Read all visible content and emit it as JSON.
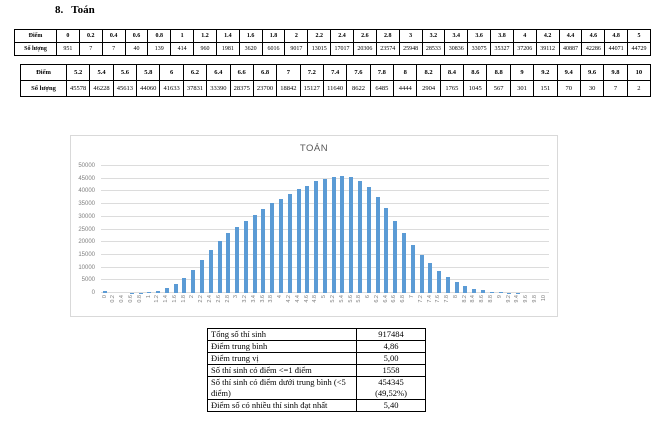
{
  "heading": {
    "number": "8.",
    "text": "Toán"
  },
  "table1": {
    "row_labels": [
      "Điểm",
      "Số lượng"
    ],
    "scores": [
      "0",
      "0.2",
      "0.4",
      "0.6",
      "0.8",
      "1",
      "1.2",
      "1.4",
      "1.6",
      "1.8",
      "2",
      "2.2",
      "2.4",
      "2.6",
      "2.8",
      "3",
      "3.2",
      "3.4",
      "3.6",
      "3.8",
      "4",
      "4.2",
      "4.4",
      "4.6",
      "4.8",
      "5"
    ],
    "counts": [
      "951",
      "7",
      "7",
      "40",
      "139",
      "414",
      "960",
      "1981",
      "3620",
      "6016",
      "9017",
      "13015",
      "17017",
      "20306",
      "23574",
      "25948",
      "28533",
      "30836",
      "33075",
      "35327",
      "37206",
      "39112",
      "40887",
      "42286",
      "44071",
      "44729"
    ]
  },
  "table2": {
    "row_labels": [
      "Điểm",
      "Số lượng"
    ],
    "scores": [
      "5.2",
      "5.4",
      "5.6",
      "5.8",
      "6",
      "6.2",
      "6.4",
      "6.6",
      "6.8",
      "7",
      "7.2",
      "7.4",
      "7.6",
      "7.8",
      "8",
      "8.2",
      "8.4",
      "8.6",
      "8.8",
      "9",
      "9.2",
      "9.4",
      "9.6",
      "9.8",
      "10"
    ],
    "counts": [
      "45578",
      "46228",
      "45613",
      "44060",
      "41633",
      "37831",
      "33390",
      "28375",
      "23700",
      "18842",
      "15127",
      "11640",
      "8622",
      "6485",
      "4444",
      "2904",
      "1765",
      "1045",
      "567",
      "301",
      "151",
      "70",
      "30",
      "7",
      "2"
    ]
  },
  "chart_data": {
    "type": "bar",
    "title": "TOÁN",
    "categories": [
      "0",
      "0.2",
      "0.4",
      "0.6",
      "0.8",
      "1",
      "1.2",
      "1.4",
      "1.6",
      "1.8",
      "2",
      "2.2",
      "2.4",
      "2.6",
      "2.8",
      "3",
      "3.2",
      "3.4",
      "3.6",
      "3.8",
      "4",
      "4.2",
      "4.4",
      "4.6",
      "4.8",
      "5",
      "5.2",
      "5.4",
      "5.6",
      "5.8",
      "6",
      "6.2",
      "6.4",
      "6.6",
      "6.8",
      "7",
      "7.2",
      "7.4",
      "7.6",
      "7.8",
      "8",
      "8.2",
      "8.4",
      "8.6",
      "8.8",
      "9",
      "9.2",
      "9.4",
      "9.6",
      "9.8",
      "10"
    ],
    "values": [
      951,
      7,
      7,
      40,
      139,
      414,
      960,
      1981,
      3620,
      6016,
      9017,
      13015,
      17017,
      20306,
      23574,
      25948,
      28533,
      30836,
      33075,
      35327,
      37206,
      39112,
      40887,
      42286,
      44071,
      44729,
      45578,
      46228,
      45613,
      44060,
      41633,
      37831,
      33390,
      28375,
      23700,
      18842,
      15127,
      11640,
      8622,
      6485,
      4444,
      2904,
      1765,
      1045,
      567,
      301,
      151,
      70,
      30,
      7,
      2
    ],
    "xlabel": "",
    "ylabel": "",
    "ylim": [
      0,
      50000
    ],
    "ytick_step": 5000,
    "grid": true,
    "legend": "none",
    "colors": {
      "bar": "#5b9bd5",
      "grid": "#dcdcdc",
      "axis_text": "#7f7f7f",
      "title_text": "#595959",
      "chart_border": "#d9d9d9"
    }
  },
  "summary_table": {
    "rows": [
      {
        "label": "Tổng số thí sinh",
        "value": "917484"
      },
      {
        "label": "Điểm trung bình",
        "value": "4,86"
      },
      {
        "label": "Điểm trung vị",
        "value": "5,00"
      },
      {
        "label": "Số thí sinh có điểm <=1 điểm",
        "value": "1558"
      },
      {
        "label": "Số thí sinh có điểm dưới trung bình (<5 điểm)",
        "value": "454345",
        "value2": "(49,52%)"
      },
      {
        "label": "Điểm số có nhiều thí sinh đạt nhất",
        "value": "5,40"
      }
    ]
  }
}
